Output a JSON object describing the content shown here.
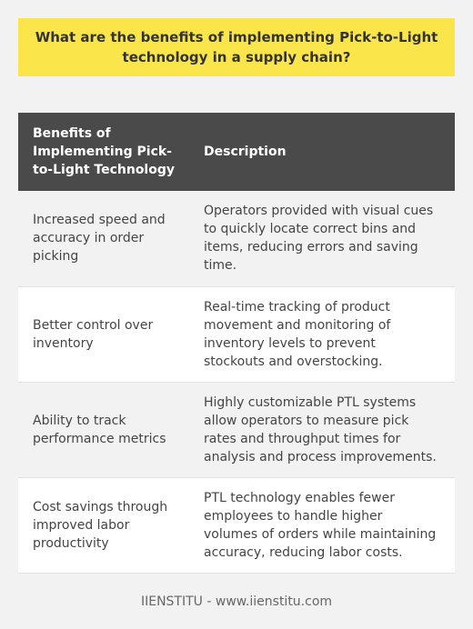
{
  "title": "What are the benefits of implementing Pick-to-Light technology in a supply chain?",
  "table": {
    "headers": [
      "Benefits of Implementing Pick-to-Light Technology",
      "Description"
    ],
    "rows": [
      {
        "benefit": "Increased speed and accuracy in order picking",
        "description": "Operators provided with visual cues to quickly locate correct bins and items, reducing errors and saving time."
      },
      {
        "benefit": "Better control over inventory",
        "description": "Real-time tracking of product movement and monitoring of inventory levels to prevent stockouts and overstocking."
      },
      {
        "benefit": "Ability to track performance metrics",
        "description": "Highly customizable PTL systems allow operators to measure pick rates and throughput times for analysis and process improvements."
      },
      {
        "benefit": "Cost savings through improved labor productivity",
        "description": "PTL technology enables fewer employees to handle higher volumes of orders while maintaining accuracy, reducing labor costs."
      }
    ]
  },
  "footer": "IIENSTITU - www.iienstitu.com",
  "colors": {
    "title_background": "#fae54a",
    "header_background": "#4a4a4a",
    "page_background": "#f2f2f2"
  }
}
